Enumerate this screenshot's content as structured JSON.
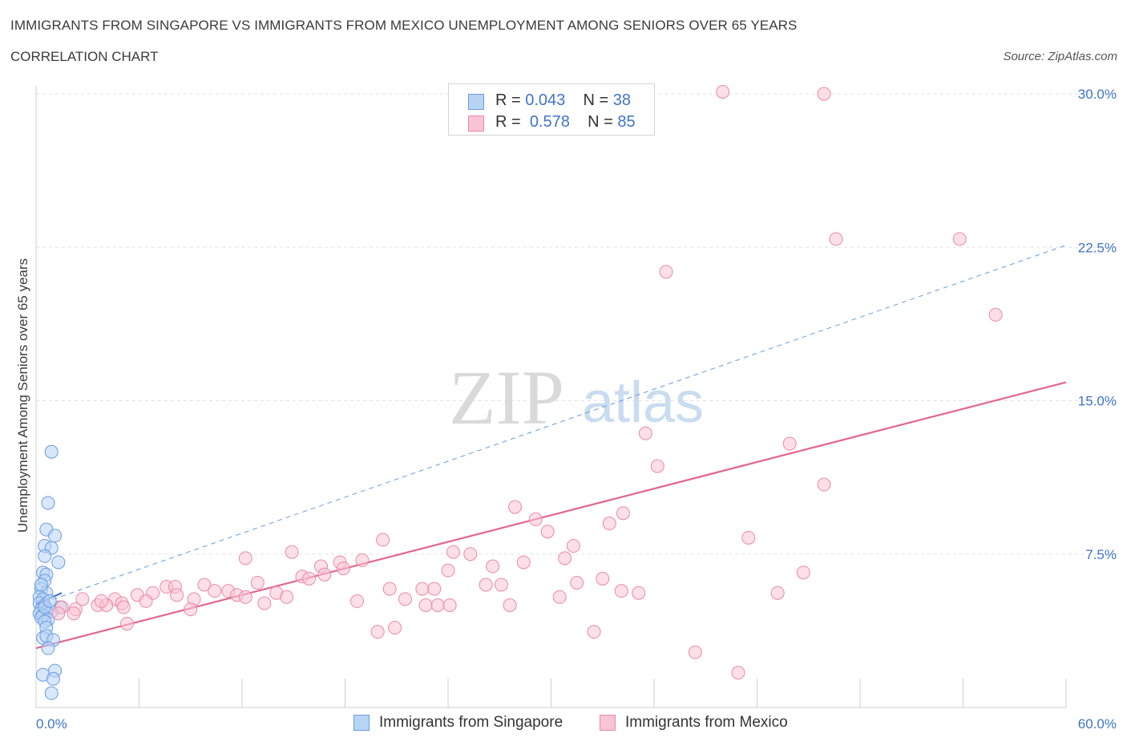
{
  "header": {
    "title": "IMMIGRANTS FROM SINGAPORE VS IMMIGRANTS FROM MEXICO UNEMPLOYMENT AMONG SENIORS OVER 65 YEARS",
    "subtitle": "CORRELATION CHART",
    "source": "Source: ZipAtlas.com"
  },
  "watermark": {
    "zip": "ZIP",
    "atlas": "atlas"
  },
  "stats": [
    {
      "r_label": "R =",
      "r_value": "0.043",
      "n_label": "N =",
      "n_value": "38",
      "color": "#b8d4f5"
    },
    {
      "r_label": "R =",
      "r_value": "0.578",
      "n_label": "N =",
      "n_value": "85",
      "color": "#f9c4d4"
    }
  ],
  "legend": [
    {
      "label": "Immigrants from Singapore",
      "color": "#b8d4f5",
      "border": "#6a9be0"
    },
    {
      "label": "Immigrants from Mexico",
      "color": "#f9c4d4",
      "border": "#e98aa8"
    }
  ],
  "chart_data": {
    "type": "scatter",
    "xlabel": "",
    "ylabel": "Unemployment Among Seniors over 65 years",
    "xlim": [
      0,
      60
    ],
    "ylim": [
      0,
      30
    ],
    "x_tick_labels": [
      "0.0%",
      "60.0%"
    ],
    "y_tick_labels": [
      {
        "value": 30,
        "label": "30.0%"
      },
      {
        "value": 22.5,
        "label": "22.5%"
      },
      {
        "value": 15,
        "label": "15.0%"
      },
      {
        "value": 7.5,
        "label": "7.5%"
      }
    ],
    "grid": true,
    "series": [
      {
        "name": "Immigrants from Singapore",
        "color": "#6a9be0",
        "fill": "#b8d4f5",
        "points": [
          [
            0.9,
            12.5
          ],
          [
            0.7,
            10.0
          ],
          [
            0.6,
            8.7
          ],
          [
            1.1,
            8.4
          ],
          [
            0.5,
            7.9
          ],
          [
            0.9,
            7.8
          ],
          [
            0.5,
            7.4
          ],
          [
            1.3,
            7.1
          ],
          [
            0.4,
            6.6
          ],
          [
            0.6,
            6.5
          ],
          [
            0.5,
            6.2
          ],
          [
            0.3,
            5.8
          ],
          [
            0.6,
            5.6
          ],
          [
            0.2,
            5.4
          ],
          [
            0.4,
            5.3
          ],
          [
            0.2,
            5.1
          ],
          [
            0.5,
            5.0
          ],
          [
            1.4,
            4.9
          ],
          [
            0.3,
            4.8
          ],
          [
            0.6,
            4.7
          ],
          [
            0.9,
            4.7
          ],
          [
            0.2,
            4.6
          ],
          [
            0.4,
            4.5
          ],
          [
            0.3,
            4.4
          ],
          [
            0.7,
            4.3
          ],
          [
            0.5,
            4.2
          ],
          [
            0.6,
            3.9
          ],
          [
            0.4,
            3.4
          ],
          [
            0.6,
            3.5
          ],
          [
            1.0,
            3.3
          ],
          [
            0.7,
            2.9
          ],
          [
            1.1,
            1.8
          ],
          [
            0.4,
            1.6
          ],
          [
            1.0,
            1.4
          ],
          [
            0.9,
            0.7
          ],
          [
            0.5,
            4.9
          ],
          [
            0.8,
            5.2
          ],
          [
            0.3,
            6.0
          ]
        ]
      },
      {
        "name": "Immigrants from Mexico",
        "color": "#e98aa8",
        "fill": "#f9c4d4",
        "points": [
          [
            40.0,
            30.1
          ],
          [
            45.9,
            30.0
          ],
          [
            46.6,
            22.9
          ],
          [
            53.8,
            22.9
          ],
          [
            36.7,
            21.3
          ],
          [
            55.9,
            19.2
          ],
          [
            35.5,
            13.4
          ],
          [
            43.9,
            12.9
          ],
          [
            36.2,
            11.8
          ],
          [
            45.9,
            10.9
          ],
          [
            27.9,
            9.8
          ],
          [
            29.1,
            9.2
          ],
          [
            34.2,
            9.5
          ],
          [
            33.4,
            9.0
          ],
          [
            29.8,
            8.6
          ],
          [
            20.2,
            8.2
          ],
          [
            41.5,
            8.3
          ],
          [
            31.3,
            7.9
          ],
          [
            14.9,
            7.6
          ],
          [
            24.3,
            7.6
          ],
          [
            25.3,
            7.5
          ],
          [
            12.2,
            7.3
          ],
          [
            30.8,
            7.3
          ],
          [
            28.4,
            7.1
          ],
          [
            17.7,
            7.1
          ],
          [
            19.0,
            7.2
          ],
          [
            16.6,
            6.9
          ],
          [
            17.9,
            6.8
          ],
          [
            24.0,
            6.7
          ],
          [
            26.6,
            6.9
          ],
          [
            44.7,
            6.6
          ],
          [
            15.5,
            6.4
          ],
          [
            15.9,
            6.3
          ],
          [
            16.8,
            6.5
          ],
          [
            31.5,
            6.1
          ],
          [
            33.0,
            6.3
          ],
          [
            12.9,
            6.1
          ],
          [
            9.8,
            6.0
          ],
          [
            26.2,
            6.0
          ],
          [
            27.1,
            6.0
          ],
          [
            7.6,
            5.9
          ],
          [
            8.1,
            5.9
          ],
          [
            20.6,
            5.8
          ],
          [
            22.5,
            5.8
          ],
          [
            23.2,
            5.8
          ],
          [
            34.1,
            5.7
          ],
          [
            35.1,
            5.6
          ],
          [
            14.0,
            5.6
          ],
          [
            10.4,
            5.7
          ],
          [
            11.2,
            5.7
          ],
          [
            11.7,
            5.5
          ],
          [
            12.2,
            5.4
          ],
          [
            8.2,
            5.5
          ],
          [
            5.9,
            5.5
          ],
          [
            6.8,
            5.6
          ],
          [
            43.2,
            5.6
          ],
          [
            30.5,
            5.4
          ],
          [
            14.6,
            5.4
          ],
          [
            21.5,
            5.3
          ],
          [
            9.2,
            5.3
          ],
          [
            4.6,
            5.3
          ],
          [
            6.4,
            5.2
          ],
          [
            2.7,
            5.3
          ],
          [
            13.3,
            5.1
          ],
          [
            18.7,
            5.2
          ],
          [
            22.7,
            5.0
          ],
          [
            23.4,
            5.0
          ],
          [
            24.1,
            5.0
          ],
          [
            27.6,
            5.0
          ],
          [
            5.0,
            5.1
          ],
          [
            3.6,
            5.0
          ],
          [
            4.1,
            5.0
          ],
          [
            3.8,
            5.2
          ],
          [
            5.1,
            4.9
          ],
          [
            9.0,
            4.8
          ],
          [
            2.3,
            4.8
          ],
          [
            1.5,
            4.9
          ],
          [
            1.3,
            4.6
          ],
          [
            2.2,
            4.6
          ],
          [
            5.3,
            4.1
          ],
          [
            19.9,
            3.7
          ],
          [
            20.9,
            3.9
          ],
          [
            32.5,
            3.7
          ],
          [
            38.4,
            2.7
          ],
          [
            40.9,
            1.7
          ]
        ]
      }
    ],
    "trend_lines": [
      {
        "series": "Immigrants from Mexico",
        "style": "solid",
        "from": [
          0,
          2.9
        ],
        "to": [
          60,
          15.9
        ]
      },
      {
        "series": "Immigrants from Singapore",
        "style": "dashed",
        "from": [
          0,
          5.0
        ],
        "to": [
          60,
          22.6
        ]
      },
      {
        "series": "Immigrants from Singapore (fit)",
        "style": "solid-short",
        "from": [
          0,
          5.05
        ],
        "to": [
          1.5,
          5.6
        ]
      }
    ]
  }
}
